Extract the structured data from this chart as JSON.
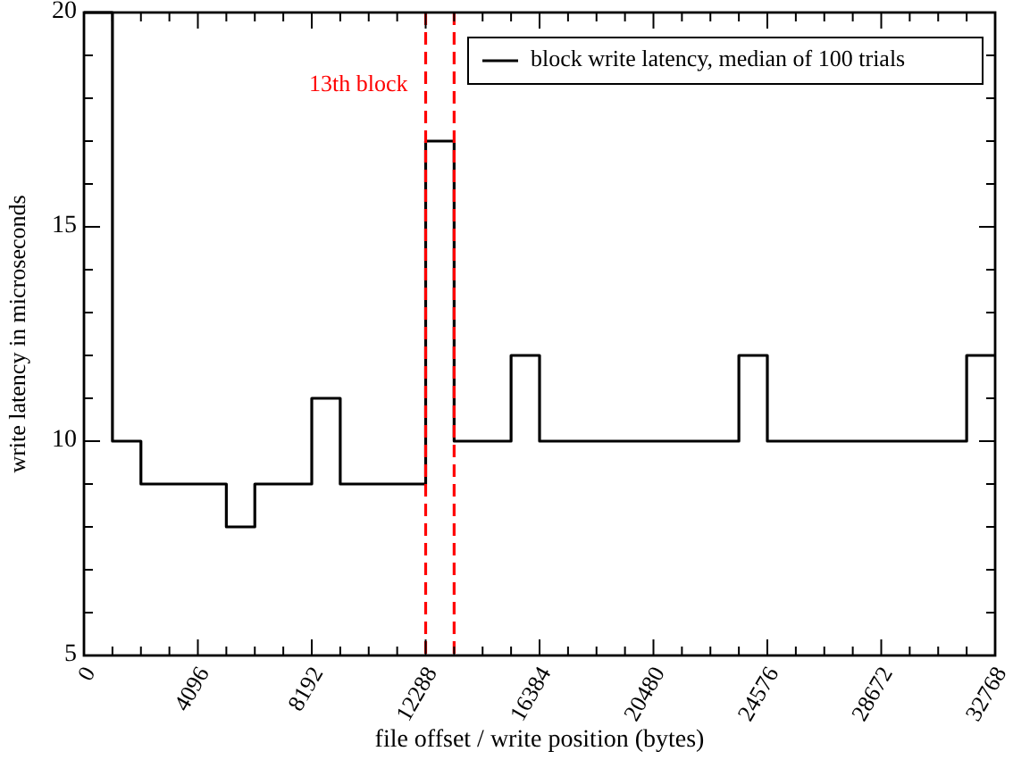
{
  "chart_data": {
    "type": "step",
    "xlabel": "file offset / write position (bytes)",
    "ylabel": "write latency in microseconds",
    "x": [
      0,
      1024,
      2048,
      3072,
      4096,
      5120,
      6144,
      7168,
      8192,
      9216,
      10240,
      11264,
      12288,
      13312,
      14336,
      15360,
      16384,
      17408,
      18432,
      19456,
      20480,
      21504,
      22528,
      23552,
      24576,
      25600,
      26624,
      27648,
      28672,
      29696,
      30720,
      31744,
      32768
    ],
    "series": [
      {
        "name": "block write latency, median of 100 trials",
        "color": "#000000",
        "values": [
          20,
          10,
          9,
          9,
          9,
          8,
          9,
          9,
          11,
          9,
          9,
          9,
          17,
          10,
          10,
          12,
          10,
          10,
          10,
          10,
          10,
          10,
          10,
          12,
          10,
          10,
          10,
          10,
          10,
          10,
          10,
          12,
          12
        ]
      }
    ],
    "xlim": [
      0,
      32768
    ],
    "xticks": [
      0,
      {
        "value": 1024,
        "label": null
      },
      {
        "value": 2048,
        "label": null
      },
      {
        "value": 3072,
        "label": null
      },
      4096,
      {
        "value": 5120,
        "label": null
      },
      {
        "value": 6144,
        "label": null
      },
      {
        "value": 7168,
        "label": null
      },
      8192,
      {
        "value": 9216,
        "label": null
      },
      {
        "value": 10240,
        "label": null
      },
      {
        "value": 11264,
        "label": null
      },
      12288,
      {
        "value": 13312,
        "label": null
      },
      {
        "value": 14336,
        "label": null
      },
      {
        "value": 15360,
        "label": null
      },
      16384,
      {
        "value": 17408,
        "label": null
      },
      {
        "value": 18432,
        "label": null
      },
      {
        "value": 19456,
        "label": null
      },
      20480,
      {
        "value": 21504,
        "label": null
      },
      {
        "value": 22528,
        "label": null
      },
      {
        "value": 23552,
        "label": null
      },
      24576,
      {
        "value": 25600,
        "label": null
      },
      {
        "value": 26624,
        "label": null
      },
      {
        "value": 27648,
        "label": null
      },
      28672,
      {
        "value": 29696,
        "label": null
      },
      {
        "value": 30720,
        "label": null
      },
      {
        "value": 31744,
        "label": null
      },
      32768
    ],
    "ylim": [
      5,
      20
    ],
    "yticks": [
      5,
      {
        "value": 6,
        "label": null
      },
      {
        "value": 7,
        "label": null
      },
      {
        "value": 8,
        "label": null
      },
      {
        "value": 9,
        "label": null
      },
      10,
      {
        "value": 11,
        "label": null
      },
      {
        "value": 12,
        "label": null
      },
      {
        "value": 13,
        "label": null
      },
      {
        "value": 14,
        "label": null
      },
      15,
      {
        "value": 16,
        "label": null
      },
      {
        "value": 17,
        "label": null
      },
      {
        "value": 18,
        "label": null
      },
      {
        "value": 19,
        "label": null
      },
      20
    ],
    "ref_lines": [
      {
        "axis": "x",
        "value": 12288,
        "label": "13th block",
        "color": "#ff0000",
        "line_style": "dashed"
      },
      {
        "axis": "x",
        "value": 13312,
        "color": "#ff0000",
        "line_style": "dashed"
      }
    ],
    "legend": "top right",
    "grid": false,
    "line_style": "solid"
  }
}
